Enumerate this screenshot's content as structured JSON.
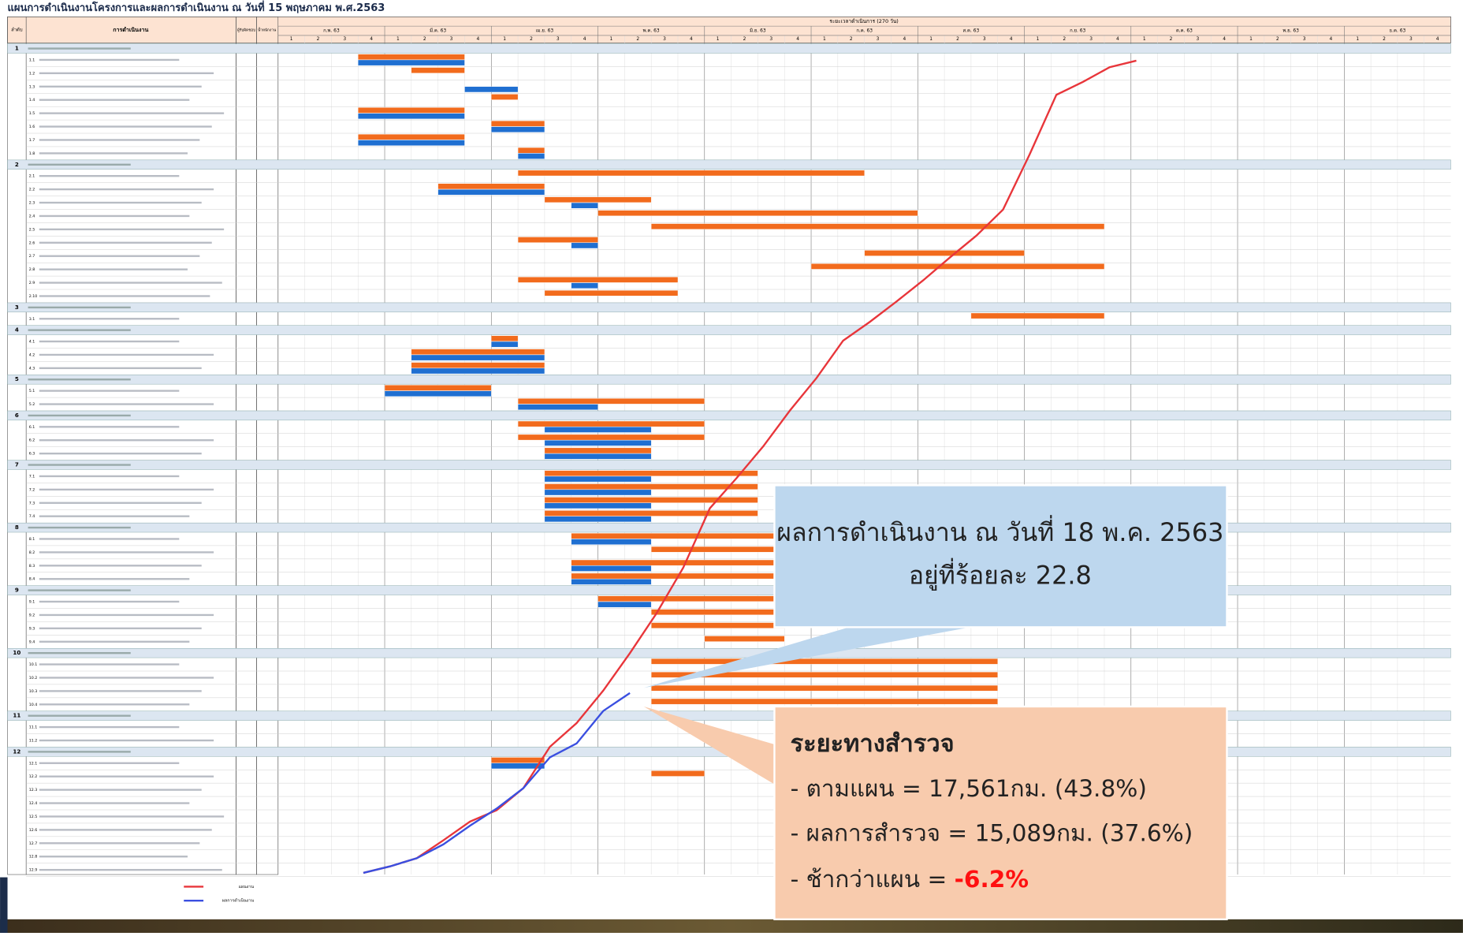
{
  "title": "แผนการดำเนินงานโครงการและผลการดำเนินงาน ณ วันที่ 15 พฤษภาคม พ.ศ.2563",
  "header": {
    "no": "ลำดับ",
    "task": "การดำเนินงาน",
    "owner": "ผู้รับผิดชอบ",
    "weight": "น้ำหนักงาน",
    "period": "ระยะเวลาดำเนินการ (270 วัน)",
    "months": [
      "ก.พ. 63",
      "มี.ค. 63",
      "เม.ย. 63",
      "พ.ค. 63",
      "มิ.ย. 63",
      "ก.ค. 63",
      "ส.ค. 63",
      "ก.ย. 63",
      "ต.ค. 63",
      "พ.ย. 63",
      "ธ.ค. 63"
    ],
    "weeks": [
      1,
      2,
      3,
      4
    ]
  },
  "sections": [
    {
      "no": "1",
      "tasks": [
        {
          "code": "1.1",
          "plan": [
            3,
            7
          ],
          "actual": [
            3,
            7
          ]
        },
        {
          "code": "1.2",
          "plan": [
            5,
            7
          ]
        },
        {
          "code": "1.3",
          "actual": [
            7,
            9
          ]
        },
        {
          "code": "1.4",
          "plan": [
            8,
            9
          ]
        },
        {
          "code": "1.5",
          "plan": [
            3,
            7
          ],
          "actual": [
            3,
            7
          ]
        },
        {
          "code": "1.6",
          "plan": [
            8,
            10
          ],
          "actual": [
            8,
            10
          ]
        },
        {
          "code": "1.7",
          "plan": [
            3,
            7
          ],
          "actual": [
            3,
            7
          ]
        },
        {
          "code": "1.8",
          "plan": [
            9,
            10
          ],
          "actual": [
            9,
            10
          ]
        }
      ]
    },
    {
      "no": "2",
      "tasks": [
        {
          "code": "2.1",
          "plan": [
            9,
            22
          ]
        },
        {
          "code": "2.2",
          "plan": [
            6,
            10
          ],
          "actual": [
            6,
            10
          ]
        },
        {
          "code": "2.3",
          "plan": [
            10,
            14
          ],
          "actual": [
            11,
            12
          ]
        },
        {
          "code": "2.4",
          "plan": [
            12,
            24
          ]
        },
        {
          "code": "2.5",
          "plan": [
            14,
            31
          ]
        },
        {
          "code": "2.6",
          "plan": [
            9,
            12
          ],
          "actual": [
            11,
            12
          ]
        },
        {
          "code": "2.7",
          "plan": [
            22,
            28
          ]
        },
        {
          "code": "2.8",
          "plan": [
            20,
            31
          ]
        },
        {
          "code": "2.9",
          "plan": [
            9,
            15
          ],
          "actual": [
            11,
            12
          ]
        },
        {
          "code": "2.10",
          "plan": [
            10,
            15
          ]
        }
      ]
    },
    {
      "no": "3",
      "tasks": [
        {
          "code": "3.1",
          "plan": [
            26,
            31
          ]
        }
      ]
    },
    {
      "no": "4",
      "tasks": [
        {
          "code": "4.1",
          "plan": [
            8,
            9
          ],
          "actual": [
            8,
            9
          ]
        },
        {
          "code": "4.2",
          "plan": [
            5,
            10
          ],
          "actual": [
            5,
            10
          ]
        },
        {
          "code": "4.3",
          "plan": [
            5,
            10
          ],
          "actual": [
            5,
            10
          ]
        }
      ]
    },
    {
      "no": "5",
      "tasks": [
        {
          "code": "5.1",
          "plan": [
            4,
            8
          ],
          "actual": [
            4,
            8
          ]
        },
        {
          "code": "5.2",
          "plan": [
            9,
            16
          ],
          "actual": [
            9,
            12
          ]
        }
      ]
    },
    {
      "no": "6",
      "tasks": [
        {
          "code": "6.1",
          "plan": [
            9,
            16
          ],
          "actual": [
            10,
            14
          ]
        },
        {
          "code": "6.2",
          "plan": [
            9,
            16
          ],
          "actual": [
            10,
            14
          ]
        },
        {
          "code": "6.3",
          "plan": [
            10,
            14
          ],
          "actual": [
            10,
            14
          ]
        }
      ]
    },
    {
      "no": "7",
      "tasks": [
        {
          "code": "7.1",
          "plan": [
            10,
            18
          ],
          "actual": [
            10,
            14
          ]
        },
        {
          "code": "7.2",
          "plan": [
            10,
            18
          ],
          "actual": [
            10,
            14
          ]
        },
        {
          "code": "7.3",
          "plan": [
            10,
            18
          ],
          "actual": [
            10,
            14
          ]
        },
        {
          "code": "7.4",
          "plan": [
            10,
            18
          ],
          "actual": [
            10,
            14
          ]
        }
      ]
    },
    {
      "no": "8",
      "tasks": [
        {
          "code": "8.1",
          "plan": [
            11,
            19
          ],
          "actual": [
            11,
            14
          ]
        },
        {
          "code": "8.2",
          "plan": [
            14,
            19
          ]
        },
        {
          "code": "8.3",
          "plan": [
            11,
            19
          ],
          "actual": [
            11,
            14
          ]
        },
        {
          "code": "8.4",
          "plan": [
            11,
            19
          ],
          "actual": [
            11,
            14
          ]
        }
      ]
    },
    {
      "no": "9",
      "tasks": [
        {
          "code": "9.1",
          "plan": [
            12,
            19
          ],
          "actual": [
            12,
            14
          ]
        },
        {
          "code": "9.2",
          "plan": [
            14,
            19
          ]
        },
        {
          "code": "9.3",
          "plan": [
            14,
            19
          ]
        },
        {
          "code": "9.4",
          "plan": [
            16,
            19
          ]
        }
      ]
    },
    {
      "no": "10",
      "tasks": [
        {
          "code": "10.1",
          "plan": [
            14,
            27
          ]
        },
        {
          "code": "10.2",
          "plan": [
            14,
            27
          ]
        },
        {
          "code": "10.3",
          "plan": [
            14,
            27
          ]
        },
        {
          "code": "10.4",
          "plan": [
            14,
            27
          ]
        }
      ]
    },
    {
      "no": "11",
      "tasks": [
        {
          "code": "11.1"
        },
        {
          "code": "11.2"
        }
      ]
    },
    {
      "no": "12",
      "tasks": [
        {
          "code": "12.1",
          "plan": [
            8,
            10
          ],
          "actual": [
            8,
            10
          ]
        },
        {
          "code": "12.2",
          "plan": [
            14,
            16
          ]
        },
        {
          "code": "12.3"
        },
        {
          "code": "12.4"
        },
        {
          "code": "12.5"
        },
        {
          "code": "12.6"
        },
        {
          "code": "12.7"
        },
        {
          "code": "12.8"
        },
        {
          "code": "12.9"
        }
      ]
    }
  ],
  "chart_data": {
    "type": "line",
    "x": [
      3.2,
      4.2,
      5.2,
      6.2,
      7.2,
      8.2,
      9.2,
      10.2,
      11.2,
      12.2,
      13.2,
      14.2,
      15.2,
      16.2,
      17.2,
      18.2,
      19.2,
      20.2,
      21.2,
      22.2,
      23.2,
      24.2,
      25.2,
      26.2,
      27.2,
      28.2,
      29.2,
      30.2,
      31.2,
      32.2
    ],
    "xlim": [
      0,
      44
    ],
    "ylim": [
      0,
      100
    ],
    "series": [
      {
        "name": "แผนงาน",
        "color": "#e8353a",
        "values": [
          0.2,
          1.0,
          2.0,
          4.2,
          6.5,
          7.9,
          10.6,
          15.7,
          18.6,
          22.6,
          27.2,
          32.1,
          37.7,
          45.0,
          48.7,
          52.6,
          57.0,
          61.0,
          65.6,
          67.9,
          70.4,
          73.0,
          75.8,
          78.5,
          81.7,
          88.5,
          95.8,
          97.4,
          99.2,
          100
        ]
      },
      {
        "name": "ผลการดำเนินงาน",
        "color": "#3a4fe0",
        "values": [
          0.2,
          1.0,
          2.0,
          3.7,
          6.0,
          8.1,
          10.6,
          14.4,
          16.1,
          20.1,
          22.3,
          null,
          null,
          null,
          null,
          null,
          null,
          null,
          null,
          null,
          null,
          null,
          null,
          null,
          null,
          null,
          null,
          null,
          null,
          null
        ]
      }
    ]
  },
  "callouts": {
    "status": {
      "line1": "ผลการดำเนินงาน ณ วันที่ 18 พ.ค. 2563",
      "line2": "อยู่ที่ร้อยละ 22.8"
    },
    "survey": {
      "title": "ระยะทางสำรวจ",
      "plan": "- ตามแผน = 17,561กม. (43.8%)",
      "result": "- ผลการสำรวจ = 15,089กม. (37.6%)",
      "delay_label": "- ช้ากว่าแผน = ",
      "delay_value": "-6.2%"
    }
  }
}
